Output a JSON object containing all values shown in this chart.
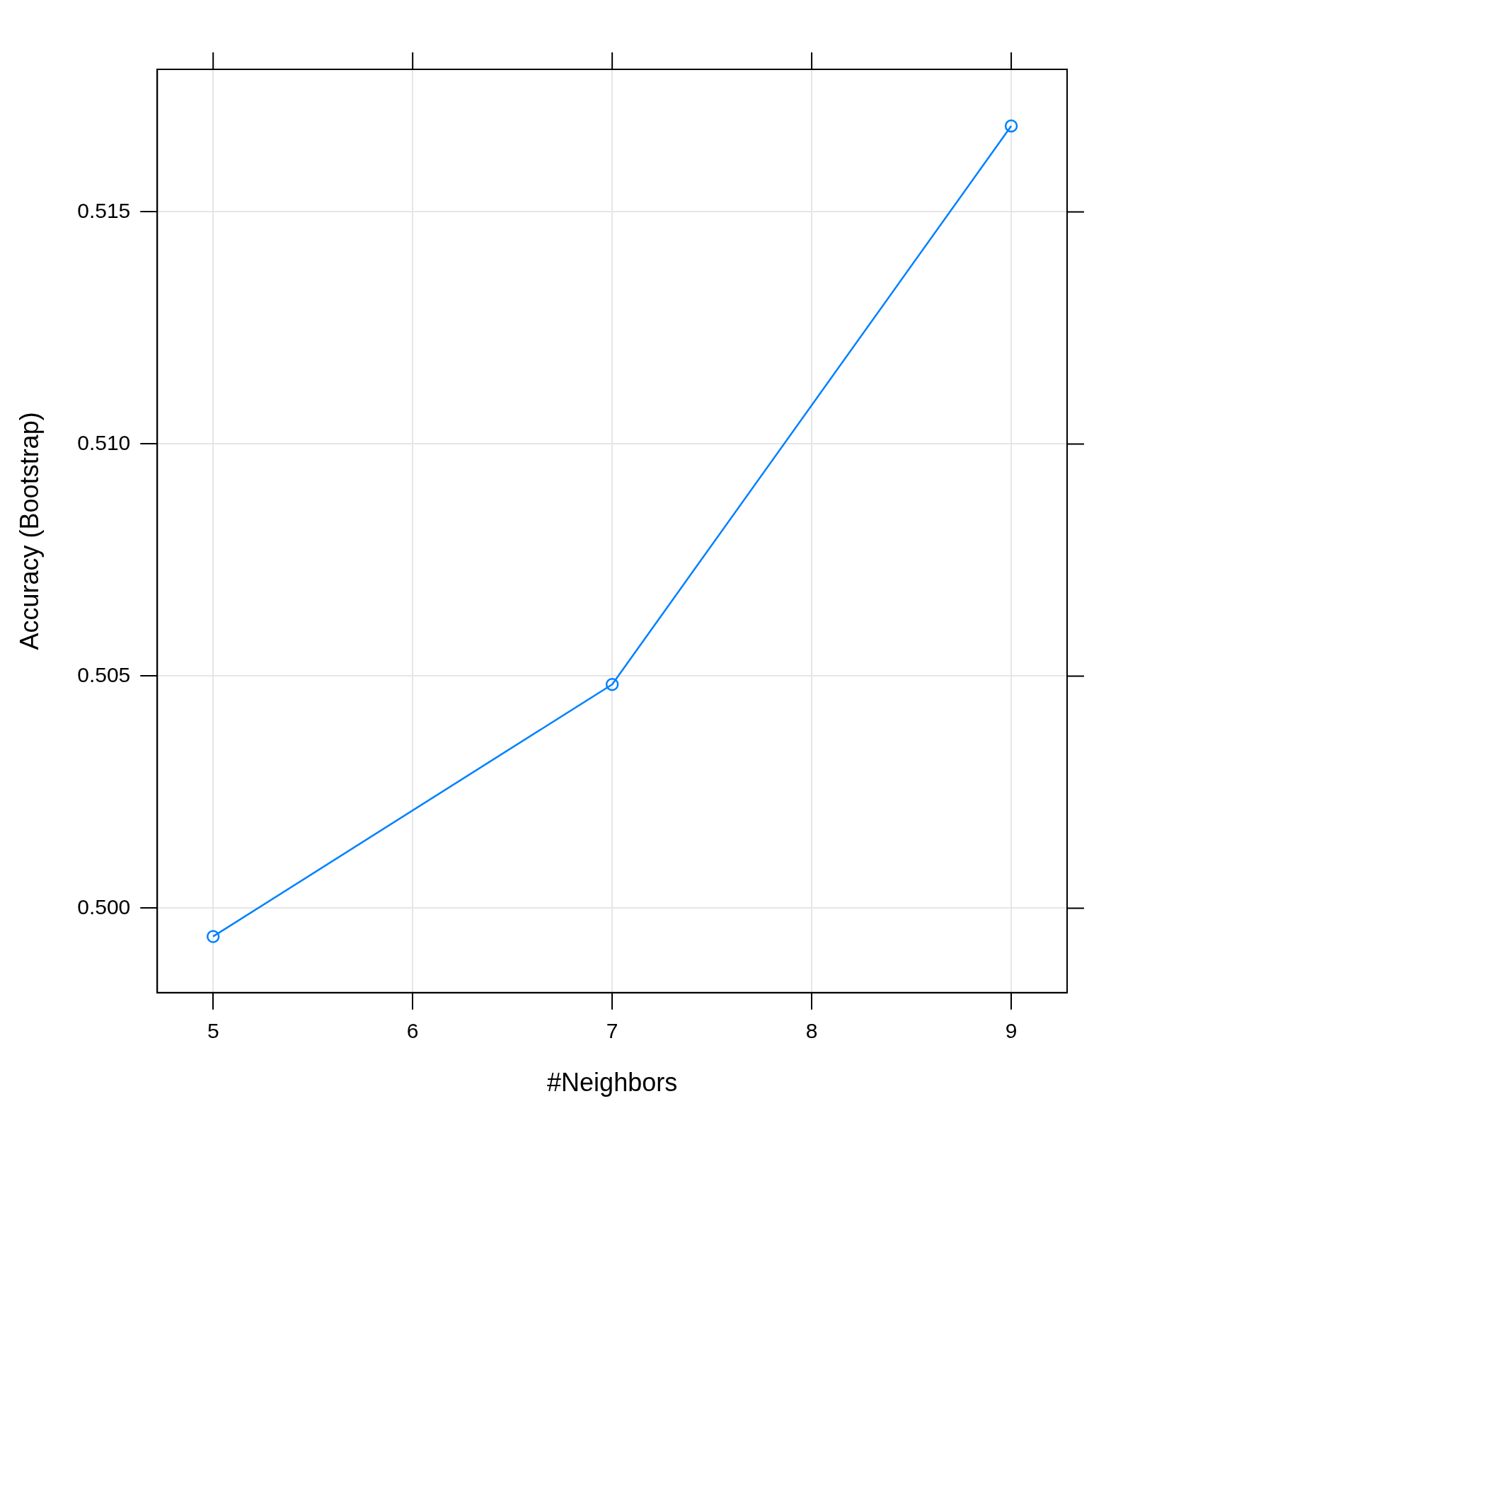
{
  "chart_data": {
    "type": "line",
    "xlabel": "#Neighbors",
    "ylabel": "Accuracy (Bootstrap)",
    "x": [
      5,
      7,
      9
    ],
    "series": [
      {
        "color": "#0080ff",
        "values": [
          0.49939,
          0.50482,
          0.51685
        ]
      }
    ],
    "xlim": [
      4.72,
      9.28
    ],
    "xticks": [
      5,
      6,
      7,
      8,
      9
    ],
    "ylim": [
      0.49818,
      0.51807
    ],
    "yticks": [
      {
        "value": 0.5,
        "label": "0.500"
      },
      {
        "value": 0.505,
        "label": "0.505"
      },
      {
        "value": 0.51,
        "label": "0.510"
      },
      {
        "value": 0.515,
        "label": "0.515"
      }
    ],
    "grid": true,
    "marker": "circle",
    "line_style": "solid",
    "legend": false
  }
}
